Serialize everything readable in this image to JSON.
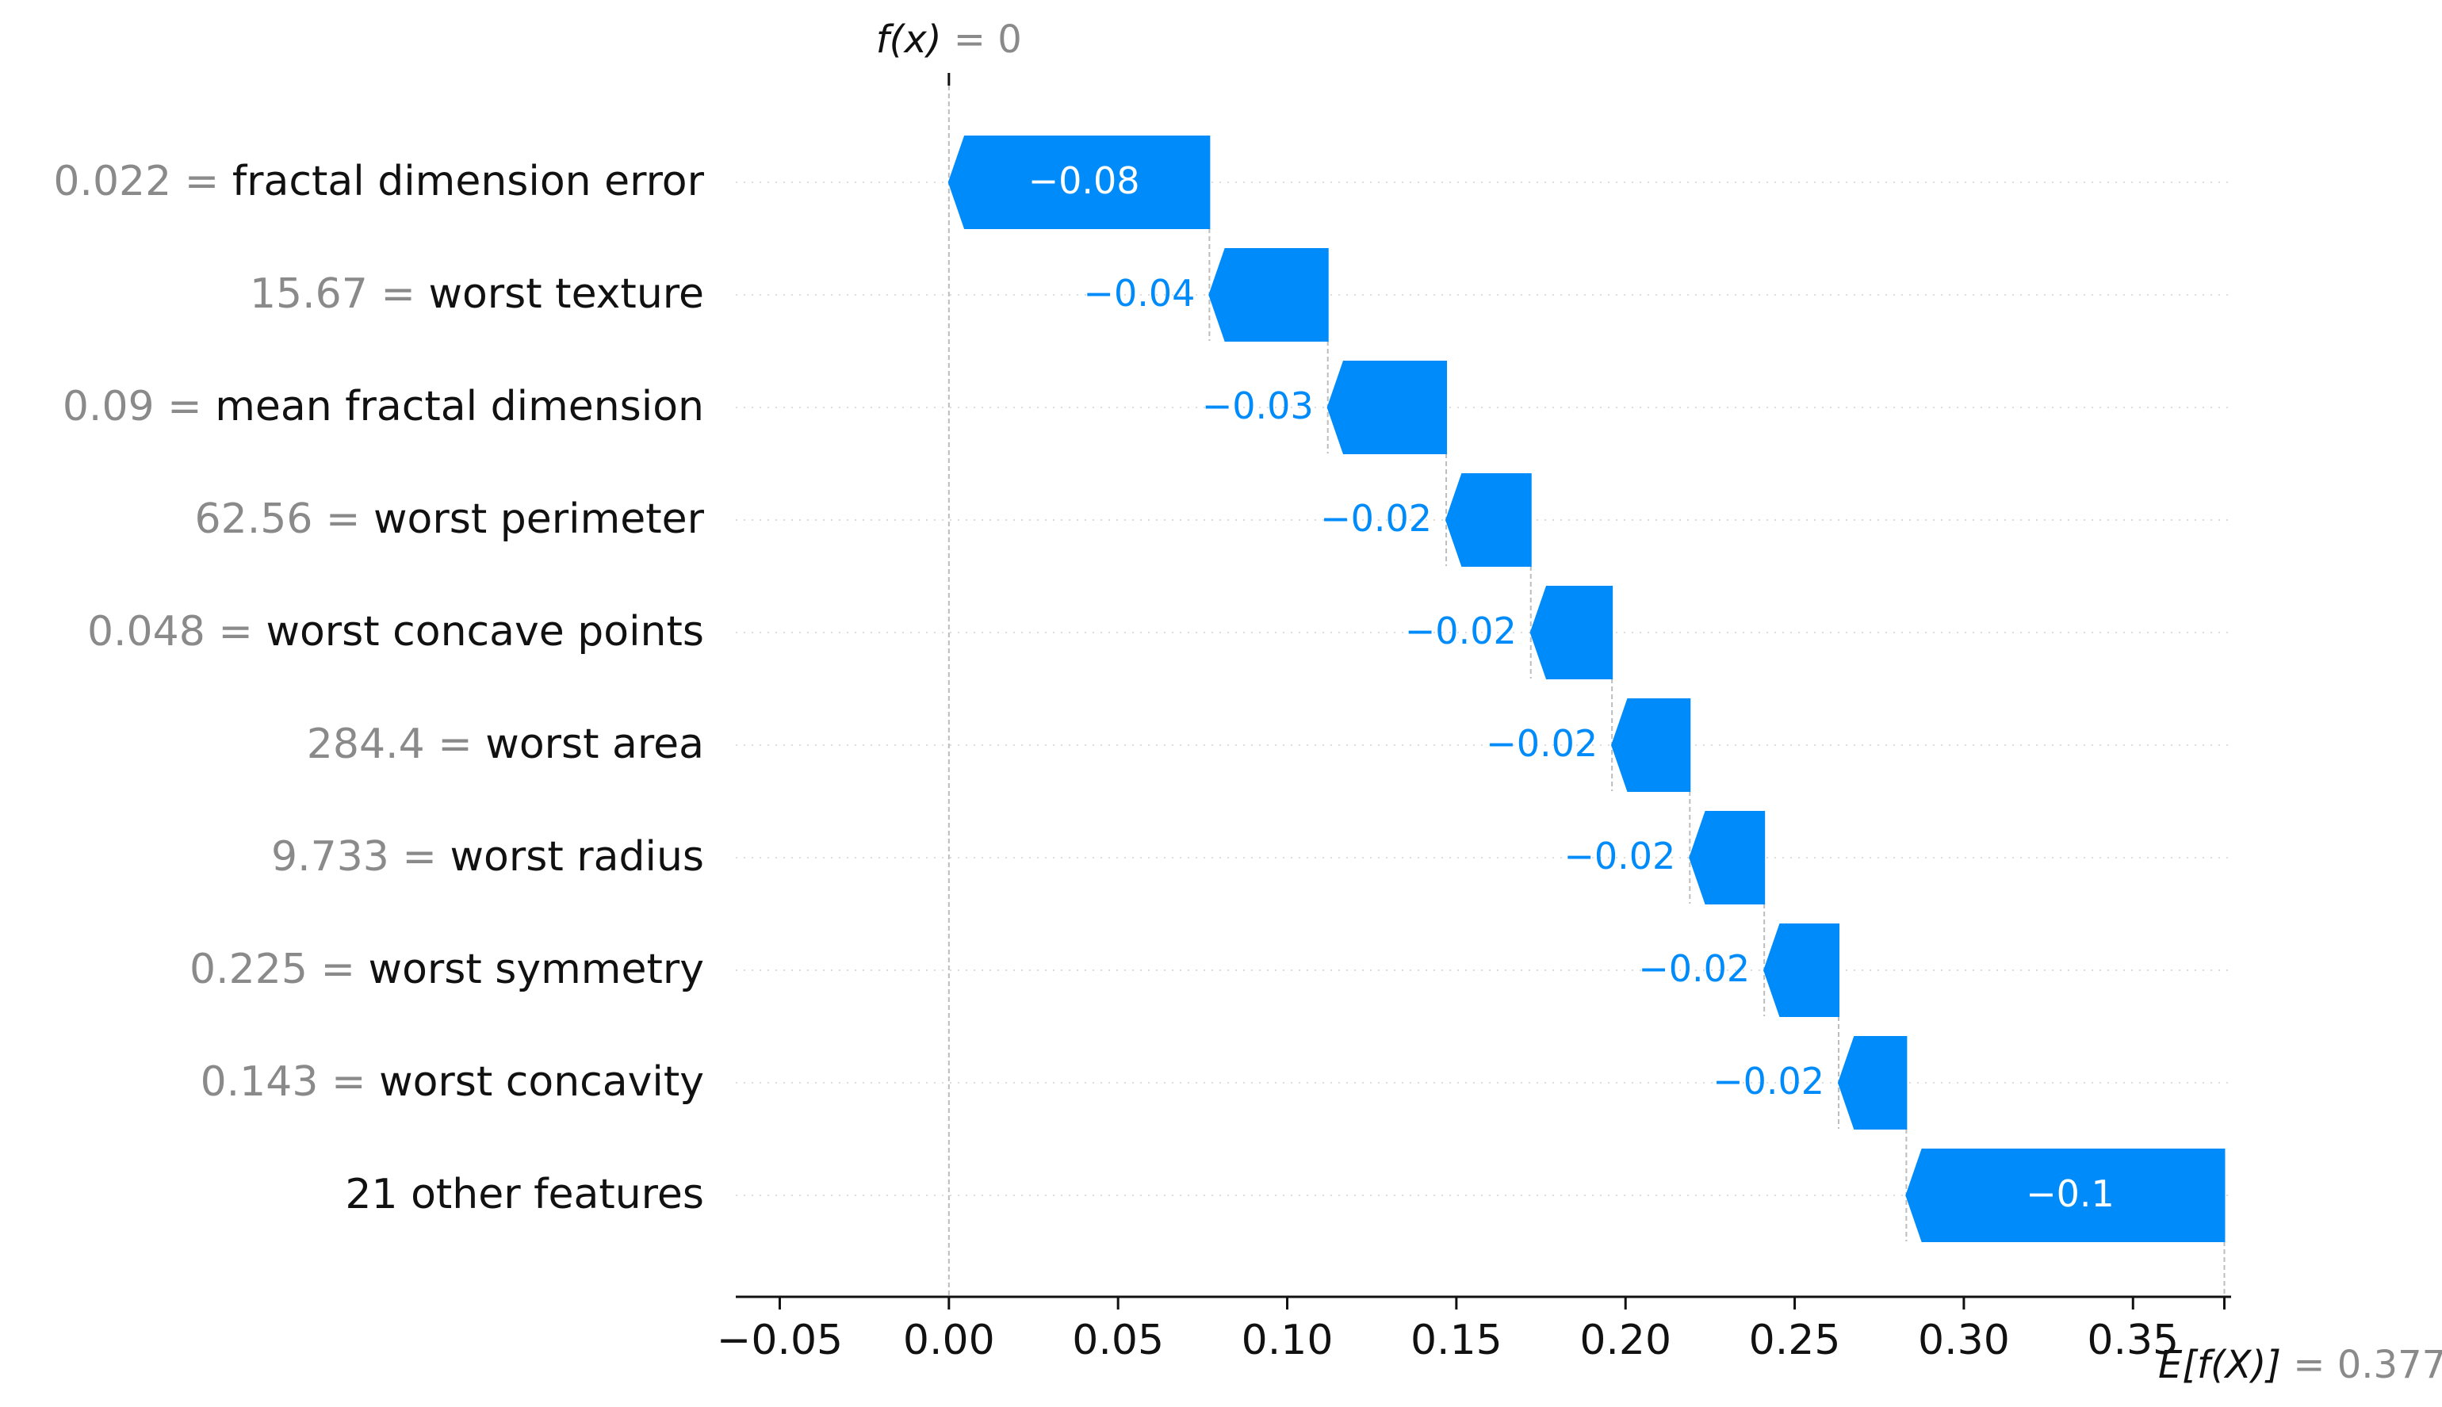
{
  "chart_data": {
    "type": "waterfall",
    "top_label": {
      "name": "f(x)",
      "value_text": "0"
    },
    "bottom_label": {
      "name": "E[f(X)]",
      "value_text": "0.377"
    },
    "base_value": 0.377,
    "output_value": 0.0,
    "xlim": [
      -0.063,
      0.379
    ],
    "x_ticks": [
      -0.05,
      0.0,
      0.05,
      0.1,
      0.15,
      0.2,
      0.25,
      0.3,
      0.35
    ],
    "x_tick_labels": [
      "−0.05",
      "0.00",
      "0.05",
      "0.10",
      "0.15",
      "0.20",
      "0.25",
      "0.30",
      "0.35"
    ],
    "bar_color": "#008bfb",
    "rows": [
      {
        "feature_value": "0.022",
        "feature_name": "fractal dimension error",
        "contribution": -0.077,
        "label": "−0.08",
        "label_inside": true
      },
      {
        "feature_value": "15.67",
        "feature_name": "worst texture",
        "contribution": -0.035,
        "label": "−0.04",
        "label_inside": false
      },
      {
        "feature_value": "0.09",
        "feature_name": "mean fractal dimension",
        "contribution": -0.035,
        "label": "−0.03",
        "label_inside": false
      },
      {
        "feature_value": "62.56",
        "feature_name": "worst perimeter",
        "contribution": -0.025,
        "label": "−0.02",
        "label_inside": false
      },
      {
        "feature_value": "0.048",
        "feature_name": "worst concave points",
        "contribution": -0.024,
        "label": "−0.02",
        "label_inside": false
      },
      {
        "feature_value": "284.4",
        "feature_name": "worst area",
        "contribution": -0.023,
        "label": "−0.02",
        "label_inside": false
      },
      {
        "feature_value": "9.733",
        "feature_name": "worst radius",
        "contribution": -0.022,
        "label": "−0.02",
        "label_inside": false
      },
      {
        "feature_value": "0.225",
        "feature_name": "worst symmetry",
        "contribution": -0.022,
        "label": "−0.02",
        "label_inside": false
      },
      {
        "feature_value": "0.143",
        "feature_name": "worst concavity",
        "contribution": -0.02,
        "label": "−0.02",
        "label_inside": false
      },
      {
        "feature_value": "",
        "feature_name": "21 other features",
        "contribution": -0.094,
        "label": "−0.1",
        "label_inside": true
      }
    ]
  }
}
